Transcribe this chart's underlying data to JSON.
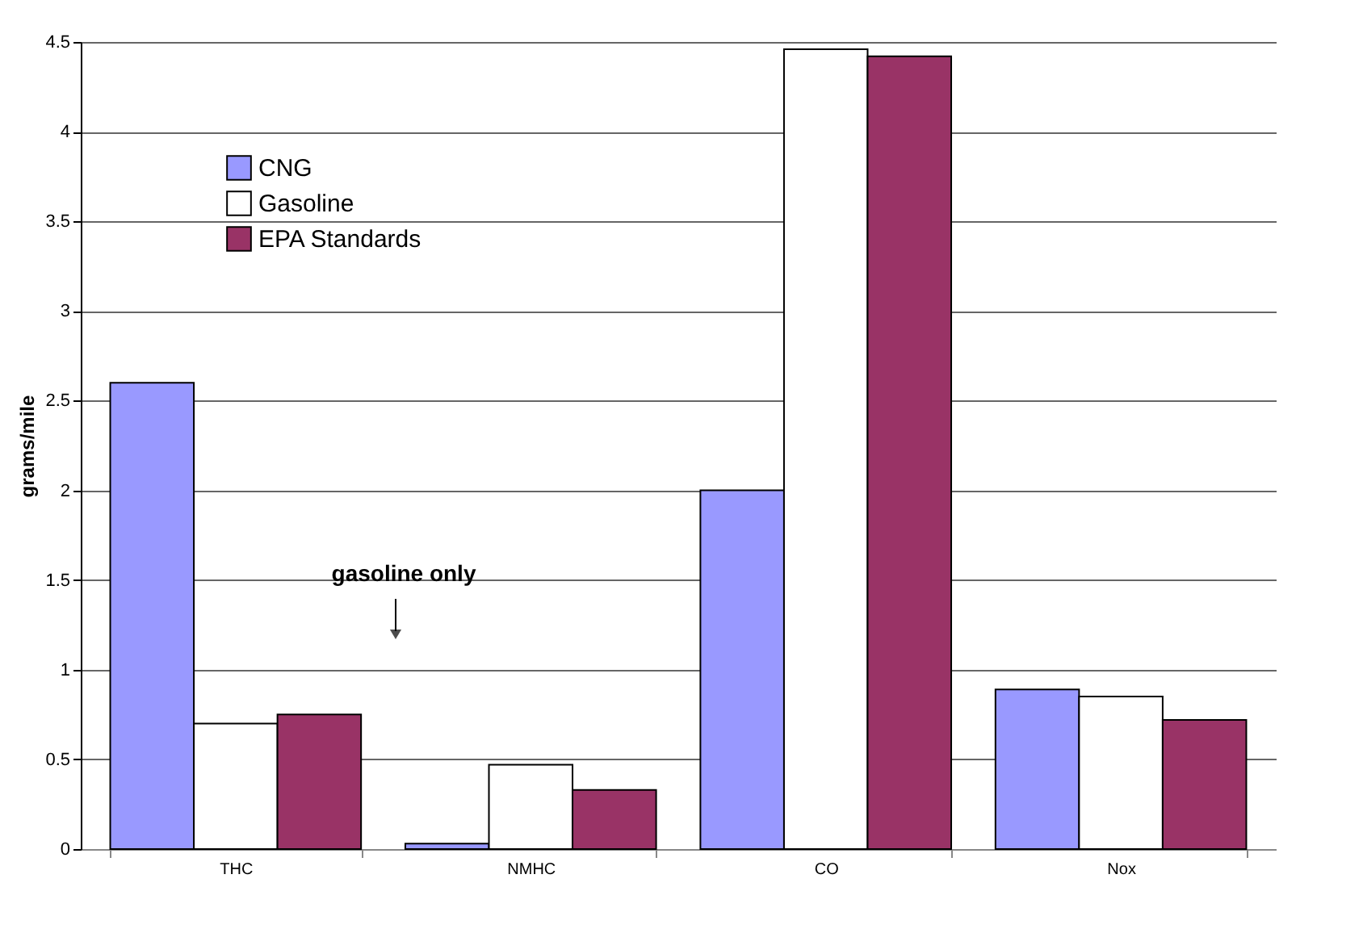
{
  "chart_data": {
    "type": "bar",
    "ylabel": "grams/mile",
    "categories": [
      "THC",
      "NMHC",
      "CO",
      "Nox"
    ],
    "series": [
      {
        "name": "CNG",
        "color": "#9999ff",
        "values": [
          2.6,
          0.03,
          2.0,
          0.89
        ]
      },
      {
        "name": "Gasoline",
        "color": "#ffffff",
        "values": [
          0.7,
          0.47,
          4.46,
          0.85
        ]
      },
      {
        "name": "EPA Standards",
        "color": "#993366",
        "values": [
          0.75,
          0.33,
          4.42,
          0.72
        ]
      }
    ],
    "ylim": [
      0,
      4.5
    ],
    "yticks": [
      0,
      0.5,
      1,
      1.5,
      2,
      2.5,
      3,
      3.5,
      4,
      4.5
    ],
    "grid": "y",
    "legend": "top left",
    "annotations": [
      "gasoline only"
    ]
  }
}
